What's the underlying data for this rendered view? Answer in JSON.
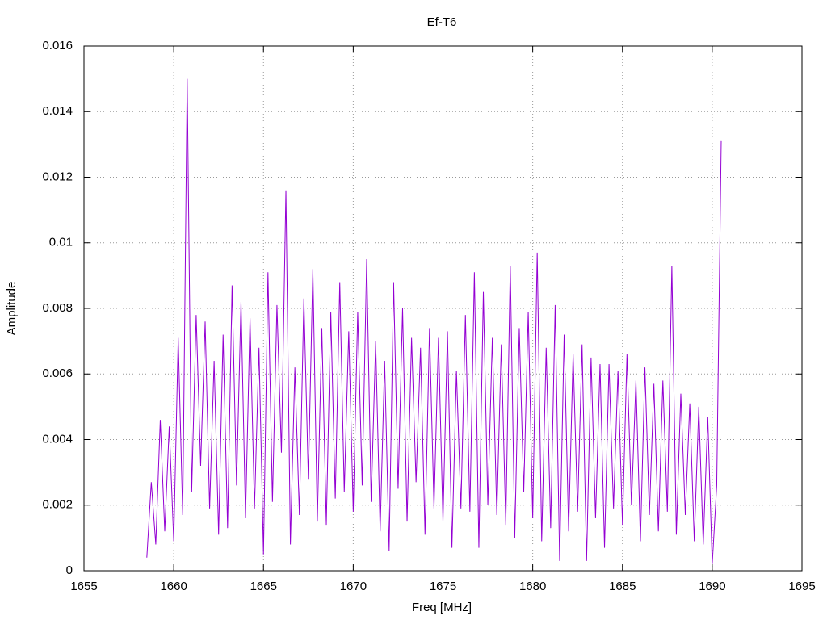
{
  "chart_data": {
    "type": "line",
    "title": "Ef-T6",
    "x_label": "Freq [MHz]",
    "y_label": "Amplitude",
    "xlim": [
      1655,
      1695
    ],
    "xticks": [
      1655,
      1660,
      1665,
      1670,
      1675,
      1680,
      1685,
      1690,
      1695
    ],
    "ylim": [
      0,
      0.016
    ],
    "yticks": [
      0,
      0.002,
      0.004,
      0.006,
      0.008,
      0.01,
      0.012,
      0.014,
      0.016
    ],
    "grid": true,
    "x": [
      1658.5,
      1658.75,
      1659,
      1659.25,
      1659.5,
      1659.75,
      1660,
      1660.25,
      1660.5,
      1660.75,
      1661,
      1661.25,
      1661.5,
      1661.75,
      1662,
      1662.25,
      1662.5,
      1662.75,
      1663,
      1663.25,
      1663.5,
      1663.75,
      1664,
      1664.25,
      1664.5,
      1664.75,
      1665,
      1665.25,
      1665.5,
      1665.75,
      1666,
      1666.25,
      1666.5,
      1666.75,
      1667,
      1667.25,
      1667.5,
      1667.75,
      1668,
      1668.25,
      1668.5,
      1668.75,
      1669,
      1669.25,
      1669.5,
      1669.75,
      1670,
      1670.25,
      1670.5,
      1670.75,
      1671,
      1671.25,
      1671.5,
      1671.75,
      1672,
      1672.25,
      1672.5,
      1672.75,
      1673,
      1673.25,
      1673.5,
      1673.75,
      1674,
      1674.25,
      1674.5,
      1674.75,
      1675,
      1675.25,
      1675.5,
      1675.75,
      1676,
      1676.25,
      1676.5,
      1676.75,
      1677,
      1677.25,
      1677.5,
      1677.75,
      1678,
      1678.25,
      1678.5,
      1678.75,
      1679,
      1679.25,
      1679.5,
      1679.75,
      1680,
      1680.25,
      1680.5,
      1680.75,
      1681,
      1681.25,
      1681.5,
      1681.75,
      1682,
      1682.25,
      1682.5,
      1682.75,
      1683,
      1683.25,
      1683.5,
      1683.75,
      1684,
      1684.25,
      1684.5,
      1684.75,
      1685,
      1685.25,
      1685.5,
      1685.75,
      1686,
      1686.25,
      1686.5,
      1686.75,
      1687,
      1687.25,
      1687.5,
      1687.75,
      1688,
      1688.25,
      1688.5,
      1688.75,
      1689,
      1689.25,
      1689.5,
      1689.75,
      1690,
      1690.25,
      1690.5
    ],
    "series": [
      {
        "color": "#9400d3",
        "values": [
          0.0004,
          0.0027,
          0.0008,
          0.0046,
          0.0012,
          0.0044,
          0.0009,
          0.0071,
          0.0017,
          0.015,
          0.0024,
          0.0078,
          0.0032,
          0.0076,
          0.0019,
          0.0064,
          0.0011,
          0.0072,
          0.0013,
          0.0087,
          0.0026,
          0.0082,
          0.0016,
          0.0077,
          0.0019,
          0.0068,
          0.0005,
          0.0091,
          0.0021,
          0.0081,
          0.0036,
          0.0116,
          0.0008,
          0.0062,
          0.0017,
          0.0083,
          0.0028,
          0.0092,
          0.0015,
          0.0074,
          0.0014,
          0.0079,
          0.0022,
          0.0088,
          0.0024,
          0.0073,
          0.0018,
          0.0079,
          0.0026,
          0.0095,
          0.0021,
          0.007,
          0.0012,
          0.0064,
          0.0006,
          0.0088,
          0.0025,
          0.008,
          0.0015,
          0.0071,
          0.0027,
          0.0068,
          0.0011,
          0.0074,
          0.0019,
          0.0071,
          0.0015,
          0.0073,
          0.0007,
          0.0061,
          0.0019,
          0.0078,
          0.0018,
          0.0091,
          0.0007,
          0.0085,
          0.002,
          0.0071,
          0.0017,
          0.0069,
          0.0014,
          0.0093,
          0.001,
          0.0074,
          0.0024,
          0.0079,
          0.0016,
          0.0097,
          0.0009,
          0.0068,
          0.0013,
          0.0081,
          0.0003,
          0.0072,
          0.0012,
          0.0066,
          0.0018,
          0.0069,
          0.0003,
          0.0065,
          0.0016,
          0.0063,
          0.0007,
          0.0063,
          0.0019,
          0.0061,
          0.0014,
          0.0066,
          0.002,
          0.0058,
          0.0009,
          0.0062,
          0.0017,
          0.0057,
          0.0012,
          0.0058,
          0.0018,
          0.0093,
          0.0011,
          0.0054,
          0.0017,
          0.0051,
          0.0009,
          0.005,
          0.0008,
          0.0047,
          0.0002,
          0.0026,
          0.0131
        ]
      }
    ]
  }
}
